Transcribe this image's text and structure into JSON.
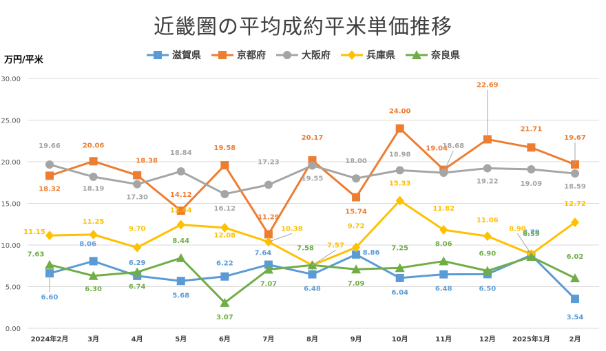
{
  "chart_data": {
    "type": "line",
    "title": "近畿圏の平均成約平米単価推移",
    "ylabel": "万円/平米",
    "xlabel": "",
    "ylim": [
      0,
      30
    ],
    "y_ticks": [
      "0.00",
      "5.00",
      "10.00",
      "15.00",
      "20.00",
      "25.00",
      "30.00"
    ],
    "grid": true,
    "legend_position": "top-center",
    "categories": [
      "2024年2月",
      "3月",
      "4月",
      "5月",
      "6月",
      "7月",
      "8月",
      "9月",
      "10月",
      "11月",
      "12月",
      "2025年1月",
      "2月"
    ],
    "series": [
      {
        "name": "滋賀県",
        "color": "#5b9bd5",
        "marker": "square",
        "values": [
          6.6,
          8.06,
          6.29,
          5.68,
          6.22,
          7.64,
          6.48,
          8.86,
          6.04,
          6.48,
          6.5,
          8.79,
          3.54
        ],
        "labels": [
          "6.60",
          "8.06",
          "6.29",
          "5.68",
          "6.22",
          "7.64",
          "6.48",
          "8.86",
          "6.04",
          "6.48",
          "6.50",
          "8.79",
          "3.54"
        ]
      },
      {
        "name": "京都府",
        "color": "#ed7d31",
        "marker": "square",
        "values": [
          18.32,
          20.06,
          18.38,
          14.12,
          19.58,
          11.29,
          20.17,
          15.74,
          24.0,
          19.04,
          22.69,
          21.71,
          19.67
        ],
        "labels": [
          "18.32",
          "20.06",
          "18.38",
          "14.12",
          "19.58",
          "11.29",
          "20.17",
          "15.74",
          "24.00",
          "19.04",
          "22.69",
          "21.71",
          "19.67"
        ]
      },
      {
        "name": "大阪府",
        "color": "#a5a5a5",
        "marker": "circle",
        "values": [
          19.66,
          18.19,
          17.3,
          18.84,
          16.12,
          17.23,
          19.55,
          18.0,
          18.98,
          18.68,
          19.22,
          19.09,
          18.59
        ],
        "labels": [
          "19.66",
          "18.19",
          "17.30",
          "18.84",
          "16.12",
          "17.23",
          "19.55",
          "18.00",
          "18.98",
          "18.68",
          "19.22",
          "19.09",
          "18.59"
        ]
      },
      {
        "name": "兵庫県",
        "color": "#ffc000",
        "marker": "diamond",
        "values": [
          11.15,
          11.25,
          9.7,
          12.44,
          12.08,
          10.38,
          7.57,
          9.72,
          15.33,
          11.82,
          11.06,
          8.9,
          12.72
        ],
        "labels": [
          "11.15",
          "11.25",
          "9.70",
          "12.44",
          "12.08",
          "10.38",
          "7.57",
          "9.72",
          "15.33",
          "11.82",
          "11.06",
          "8.90",
          "12.72"
        ]
      },
      {
        "name": "奈良県",
        "color": "#70ad47",
        "marker": "triangle",
        "values": [
          7.63,
          6.3,
          6.74,
          8.44,
          3.07,
          7.07,
          7.58,
          7.09,
          7.25,
          8.06,
          6.9,
          8.59,
          6.02
        ],
        "labels": [
          "7.63",
          "6.30",
          "6.74",
          "8.44",
          "3.07",
          "7.07",
          "7.58",
          "7.09",
          "7.25",
          "8.06",
          "6.90",
          "8.59",
          "6.02"
        ]
      }
    ]
  }
}
